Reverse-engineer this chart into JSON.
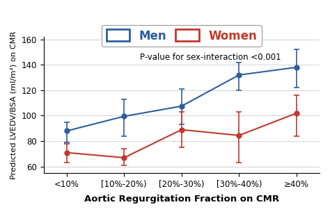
{
  "x_labels": [
    "<10%",
    "[10%-20%)",
    "[20%-30%)",
    "[30%-40%)",
    "≥40%"
  ],
  "x_positions": [
    0,
    1,
    2,
    3,
    4
  ],
  "men_y": [
    88,
    99.5,
    107.5,
    132,
    138
  ],
  "men_yerr_low": [
    9,
    15.5,
    14.5,
    12,
    16
  ],
  "men_yerr_high": [
    7,
    13.5,
    13.5,
    10,
    14
  ],
  "women_y": [
    71,
    67,
    89,
    84.5,
    102
  ],
  "women_yerr_low": [
    8,
    6,
    14,
    21.5,
    18
  ],
  "women_yerr_high": [
    7,
    7,
    14,
    18.5,
    14
  ],
  "men_color": "#2c5f9e",
  "women_color": "#c0392b",
  "ylabel": "Predicted LVEDV/BSA (ml/m²) on CMR",
  "xlabel": "Aortic Regurgitation Fraction on CMR",
  "annotation": "P-value for sex-interaction <0.001",
  "ylim": [
    55,
    162
  ],
  "yticks": [
    60,
    80,
    100,
    120,
    140,
    160
  ],
  "legend_men": "Men",
  "legend_women": "Women"
}
